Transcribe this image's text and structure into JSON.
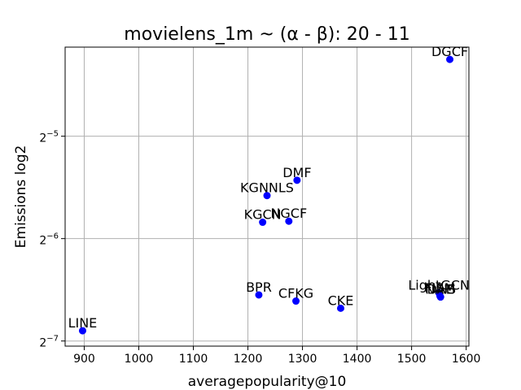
{
  "chart_data": {
    "type": "scatter",
    "title": "movielens_1m ~ (α - β): 20 - 11",
    "xlabel": "averagepopularity@10",
    "ylabel": "Emissions log2",
    "y_scale": "log2",
    "xlim": [
      865,
      1605
    ],
    "ylim_log2": [
      -7.05,
      -4.13
    ],
    "grid": true,
    "x_ticks": [
      {
        "value": 900,
        "label": "900"
      },
      {
        "value": 1000,
        "label": "1000"
      },
      {
        "value": 1100,
        "label": "1100"
      },
      {
        "value": 1200,
        "label": "1200"
      },
      {
        "value": 1300,
        "label": "1300"
      },
      {
        "value": 1400,
        "label": "1400"
      },
      {
        "value": 1500,
        "label": "1500"
      },
      {
        "value": 1600,
        "label": "1600"
      }
    ],
    "y_ticks": [
      {
        "value": -5,
        "base": "2",
        "exp": "−5"
      },
      {
        "value": -6,
        "base": "2",
        "exp": "−6"
      },
      {
        "value": -7,
        "base": "2",
        "exp": "−7"
      }
    ],
    "marker_color": "#0000ff",
    "points": [
      {
        "label": "DGCF",
        "x": 1570,
        "y_log2": -4.25
      },
      {
        "label": "DMF",
        "x": 1290,
        "y_log2": -5.43
      },
      {
        "label": "KGNNLS",
        "x": 1235,
        "y_log2": -5.58
      },
      {
        "label": "NGCF",
        "x": 1275,
        "y_log2": -5.83
      },
      {
        "label": "KGCN",
        "x": 1227,
        "y_log2": -5.84
      },
      {
        "label": "BPR",
        "x": 1220,
        "y_log2": -6.55
      },
      {
        "label": "CFKG",
        "x": 1288,
        "y_log2": -6.61
      },
      {
        "label": "CKE",
        "x": 1370,
        "y_log2": -6.68
      },
      {
        "label": "LightGCN",
        "x": 1550,
        "y_log2": -6.53
      },
      {
        "label": "FISM",
        "x": 1552,
        "y_log2": -6.56
      },
      {
        "label": "NAIS",
        "x": 1553,
        "y_log2": -6.57
      },
      {
        "label": "DAE",
        "x": 1553,
        "y_log2": -6.57
      },
      {
        "label": "LINE",
        "x": 897,
        "y_log2": -6.9
      }
    ]
  }
}
